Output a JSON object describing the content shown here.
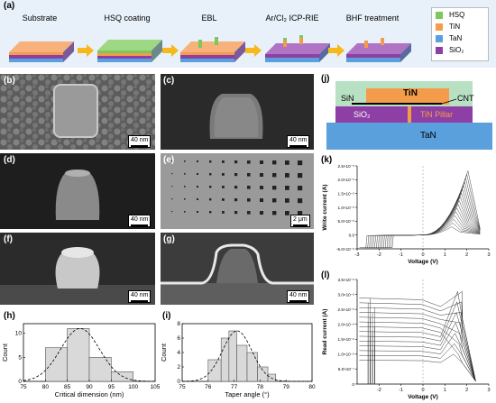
{
  "panels": {
    "a": "(a)",
    "b": "(b)",
    "c": "(c)",
    "d": "(d)",
    "e": "(e)",
    "f": "(f)",
    "g": "(g)",
    "h": "(h)",
    "i": "(i)",
    "j": "(j)",
    "k": "(k)",
    "l": "(l)"
  },
  "process_steps": [
    "Substrate",
    "HSQ coating",
    "EBL",
    "Ar/Cl₂ ICP-RIE",
    "BHF treatment"
  ],
  "legend": [
    {
      "label": "HSQ",
      "color": "#7dc75b"
    },
    {
      "label": "TiN",
      "color": "#f39c4a"
    },
    {
      "label": "TaN",
      "color": "#5aa0dc"
    },
    {
      "label": "SiO₂",
      "color": "#8e3fa5"
    }
  ],
  "colors": {
    "arrow": "#f7b81c",
    "hsq": "#7dc75b",
    "tin": "#f39c4a",
    "tan": "#5aa0dc",
    "sio2": "#8e3fa5",
    "sin": "#b8e1c4"
  },
  "scale_bars": {
    "b": "40 nm",
    "c": "40 nm",
    "d": "40 nm",
    "e": "2 μm",
    "f": "40 nm",
    "g": "40 nm"
  },
  "device": {
    "sin": "SiN",
    "tin": "TiN",
    "cnt": "CNT",
    "sio2": "SiO₂",
    "pillar": "TiN Pillar",
    "tan": "TaN"
  },
  "chart_data": [
    {
      "id": "h",
      "type": "bar",
      "xlabel": "Critical dimension (nm)",
      "ylabel": "Count",
      "xlim": [
        75,
        105
      ],
      "ylim": [
        0,
        12
      ],
      "xticks": [
        75,
        80,
        85,
        90,
        95,
        100,
        105
      ],
      "yticks": [
        0,
        5,
        10
      ],
      "bins": [
        [
          80,
          85,
          7
        ],
        [
          85,
          90,
          11
        ],
        [
          90,
          95,
          5
        ],
        [
          95,
          100,
          2
        ]
      ],
      "fit": "gaussian"
    },
    {
      "id": "i",
      "type": "bar",
      "xlabel": "Taper angle (°)",
      "ylabel": "Count",
      "xlim": [
        75,
        80
      ],
      "ylim": [
        0,
        8
      ],
      "xticks": [
        75,
        76,
        77,
        78,
        79,
        80
      ],
      "yticks": [
        0,
        2,
        4,
        6,
        8
      ],
      "bins": [
        [
          76,
          76.5,
          3
        ],
        [
          76.5,
          76.8,
          6
        ],
        [
          76.8,
          77.1,
          7
        ],
        [
          77.1,
          77.5,
          5
        ],
        [
          77.5,
          77.9,
          4
        ],
        [
          77.9,
          78.3,
          2
        ],
        [
          78.3,
          78.6,
          1
        ]
      ],
      "fit": "gaussian"
    },
    {
      "id": "k",
      "type": "line",
      "xlabel": "Voltage (V)",
      "ylabel": "Write current (A)",
      "xlim": [
        -3,
        3
      ],
      "ylim": [
        -5e-06,
        2.5e-05
      ],
      "xticks": [
        -3,
        -2,
        -1,
        0,
        1,
        2,
        3
      ],
      "yticks": [
        -5e-06,
        0.0,
        5e-06,
        1e-05,
        1.5e-05,
        2e-05,
        2.5e-05
      ],
      "ytick_labels": [
        "-5.0×10⁻⁶",
        "0.0",
        "5.0×10⁻⁶",
        "1.0×10⁻⁵",
        "1.5×10⁻⁵",
        "2.0×10⁻⁵",
        "2.5×10⁻⁵"
      ]
    },
    {
      "id": "l",
      "type": "line",
      "xlabel": "Voltage (V)",
      "ylabel": "Read current (A)",
      "xlim": [
        -3,
        3
      ],
      "ylim": [
        0,
        3.5e-06
      ],
      "xticks": [
        -2,
        -1,
        0,
        1,
        2,
        3
      ],
      "yticks": [
        0,
        5e-07,
        1e-06,
        1.5e-06,
        2e-06,
        2.5e-06,
        3e-06,
        3.5e-06
      ],
      "ytick_labels": [
        "0",
        "5.0×10⁻⁷",
        "1.0×10⁻⁶",
        "1.5×10⁻⁶",
        "2.0×10⁻⁶",
        "2.5×10⁻⁶",
        "3.0×10⁻⁶",
        "3.5×10⁻⁶"
      ]
    }
  ]
}
